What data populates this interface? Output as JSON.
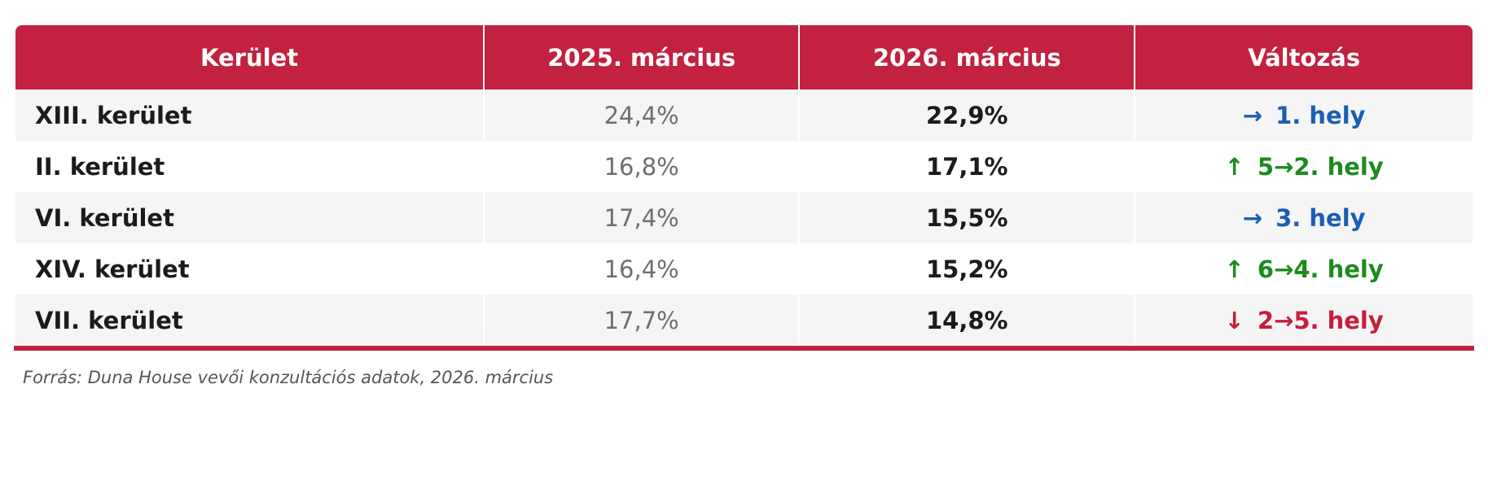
{
  "chart_data": {
    "type": "table",
    "title": "",
    "columns": [
      "Kerület",
      "2025. március",
      "2026. március",
      "Változás"
    ],
    "rows": [
      {
        "district": "XIII. kerület",
        "y2025": "24,4%",
        "y2026": "22,9%",
        "change": {
          "arrow": "→",
          "label": "1. hely",
          "direction": "same"
        }
      },
      {
        "district": "II. kerület",
        "y2025": "16,8%",
        "y2026": "17,1%",
        "change": {
          "arrow": "↑",
          "label": "5→2. hely",
          "direction": "up"
        }
      },
      {
        "district": "VI. kerület",
        "y2025": "17,4%",
        "y2026": "15,5%",
        "change": {
          "arrow": "→",
          "label": "3. hely",
          "direction": "same"
        }
      },
      {
        "district": "XIV. kerület",
        "y2025": "16,4%",
        "y2026": "15,2%",
        "change": {
          "arrow": "↑",
          "label": "6→4. hely",
          "direction": "up"
        }
      },
      {
        "district": "VII. kerület",
        "y2025": "17,7%",
        "y2026": "14,8%",
        "change": {
          "arrow": "↓",
          "label": "2→5. hely",
          "direction": "down"
        }
      }
    ]
  },
  "table": {
    "headers": {
      "district": "Kerület",
      "y2025": "2025. március",
      "y2026": "2026. március",
      "change": "Változás"
    },
    "rows": [
      {
        "district": "XIII. kerület",
        "y2025": "24,4%",
        "y2026": "22,9%",
        "change": {
          "arrow": "→",
          "label": "1. hely",
          "direction": "same"
        }
      },
      {
        "district": "II. kerület",
        "y2025": "16,8%",
        "y2026": "17,1%",
        "change": {
          "arrow": "↑",
          "label": "5→2. hely",
          "direction": "up"
        }
      },
      {
        "district": "VI. kerület",
        "y2025": "17,4%",
        "y2026": "15,5%",
        "change": {
          "arrow": "→",
          "label": "3. hely",
          "direction": "same"
        }
      },
      {
        "district": "XIV. kerület",
        "y2025": "16,4%",
        "y2026": "15,2%",
        "change": {
          "arrow": "↑",
          "label": "6→4. hely",
          "direction": "up"
        }
      },
      {
        "district": "VII. kerület",
        "y2025": "17,7%",
        "y2026": "14,8%",
        "change": {
          "arrow": "↓",
          "label": "2→5. hely",
          "direction": "down"
        }
      }
    ]
  },
  "footer": {
    "source": "Forrás: Duna House vevői konzultációs adatok, 2026. március"
  },
  "colors": {
    "accent_red": "#C2213F",
    "up_green": "#1E8A1E",
    "same_blue": "#1A5EB4",
    "down_red": "#C81E3C",
    "row_alt_gray": "#f5f5f6"
  }
}
